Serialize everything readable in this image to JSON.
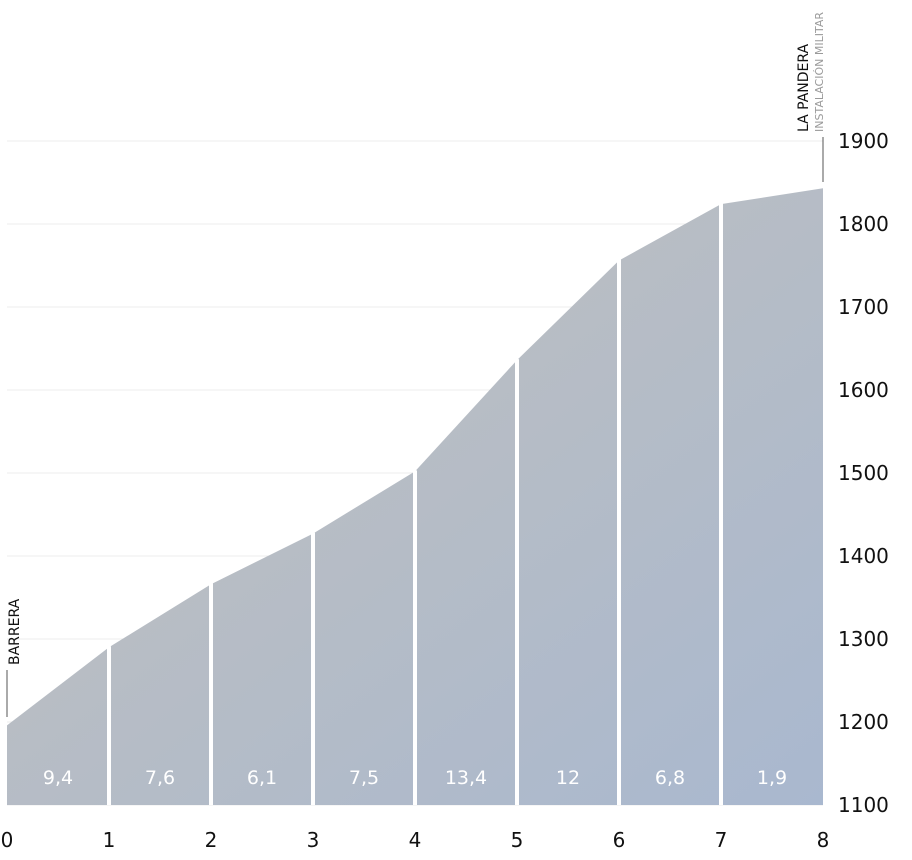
{
  "chart_data": {
    "type": "area",
    "x": [
      0,
      1,
      2,
      3,
      4,
      5,
      6,
      7,
      8
    ],
    "elevation": [
      1196,
      1290,
      1366,
      1427,
      1502,
      1636,
      1756,
      1824,
      1843
    ],
    "segment_grades": [
      "9,4",
      "7,6",
      "6,1",
      "7,5",
      "13,4",
      "12",
      "6,8",
      "1,9"
    ],
    "x_ticks": [
      "0",
      "1",
      "2",
      "3",
      "4",
      "5",
      "6",
      "7",
      "8"
    ],
    "y_ticks": [
      "1100",
      "1200",
      "1300",
      "1400",
      "1500",
      "1600",
      "1700",
      "1800",
      "1900"
    ],
    "xlim": [
      0,
      8
    ],
    "ylim": [
      1100,
      1900
    ],
    "grid": true,
    "start_label": "BARRERA",
    "end_label": "LA PANDERA",
    "end_sublabel": "INSTALACIÓN MILITAR",
    "colors": {
      "fill_start": "#c3c1bc",
      "fill_end": "#a9b8cf",
      "separator": "#ffffff",
      "grid": "#ececec",
      "marker_line": "#555555"
    }
  }
}
